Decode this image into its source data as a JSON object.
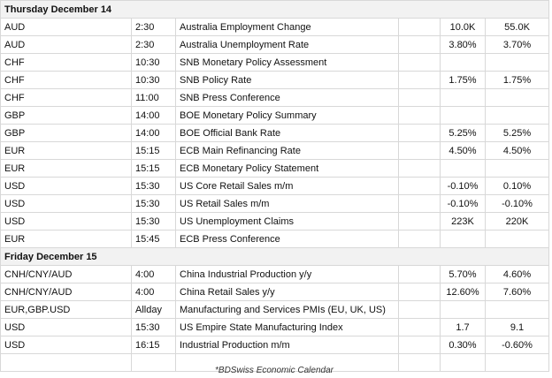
{
  "sections": [
    {
      "title": "Thursday December 14",
      "rows": [
        {
          "currency": "AUD",
          "time": "2:30",
          "event": "Australia Employment Change",
          "forecast": "10.0K",
          "previous": "55.0K"
        },
        {
          "currency": "AUD",
          "time": "2:30",
          "event": "Australia Unemployment Rate",
          "forecast": "3.80%",
          "previous": "3.70%"
        },
        {
          "currency": "CHF",
          "time": "10:30",
          "event": "SNB Monetary Policy Assessment"
        },
        {
          "currency": "CHF",
          "time": "10:30",
          "event": "SNB Policy Rate",
          "forecast": "1.75%",
          "previous": "1.75%"
        },
        {
          "currency": "CHF",
          "time": "11:00",
          "event": "SNB Press Conference"
        },
        {
          "currency": "GBP",
          "time": "14:00",
          "event": "BOE Monetary Policy Summary"
        },
        {
          "currency": "GBP",
          "time": "14:00",
          "event": "BOE Official Bank Rate",
          "forecast": "5.25%",
          "previous": "5.25%"
        },
        {
          "currency": "EUR",
          "time": "15:15",
          "event": "ECB Main Refinancing Rate",
          "forecast": "4.50%",
          "previous": "4.50%"
        },
        {
          "currency": "EUR",
          "time": "15:15",
          "event": "ECB Monetary Policy Statement"
        },
        {
          "currency": "USD",
          "time": "15:30",
          "event": "US Core Retail Sales m/m",
          "forecast": "-0.10%",
          "previous": "0.10%"
        },
        {
          "currency": "USD",
          "time": "15:30",
          "event": "US Retail Sales m/m",
          "forecast": "-0.10%",
          "previous": "-0.10%"
        },
        {
          "currency": "USD",
          "time": "15:30",
          "event": "US Unemployment Claims",
          "forecast": "223K",
          "previous": "220K"
        },
        {
          "currency": "EUR",
          "time": "15:45",
          "event": "ECB Press Conference"
        }
      ]
    },
    {
      "title": "Friday December 15",
      "rows": [
        {
          "currency": "CNH/CNY/AUD",
          "time": "4:00",
          "event": "China Industrial Production y/y",
          "forecast": "5.70%",
          "previous": "4.60%"
        },
        {
          "currency": "CNH/CNY/AUD",
          "time": "4:00",
          "event": "China Retail Sales y/y",
          "forecast": "12.60%",
          "previous": "7.60%"
        },
        {
          "currency": "EUR,GBP.USD",
          "time": "Allday",
          "event": "Manufacturing and Services PMIs (EU, UK, US)"
        },
        {
          "currency": "USD",
          "time": "15:30",
          "event": "US Empire State Manufacturing Index",
          "forecast": "1.7",
          "previous": "9.1"
        },
        {
          "currency": "USD",
          "time": "16:15",
          "event": "Industrial Production m/m",
          "forecast": "0.30%",
          "previous": "-0.60%"
        }
      ]
    }
  ],
  "footer": "*BDSwiss Economic Calendar"
}
